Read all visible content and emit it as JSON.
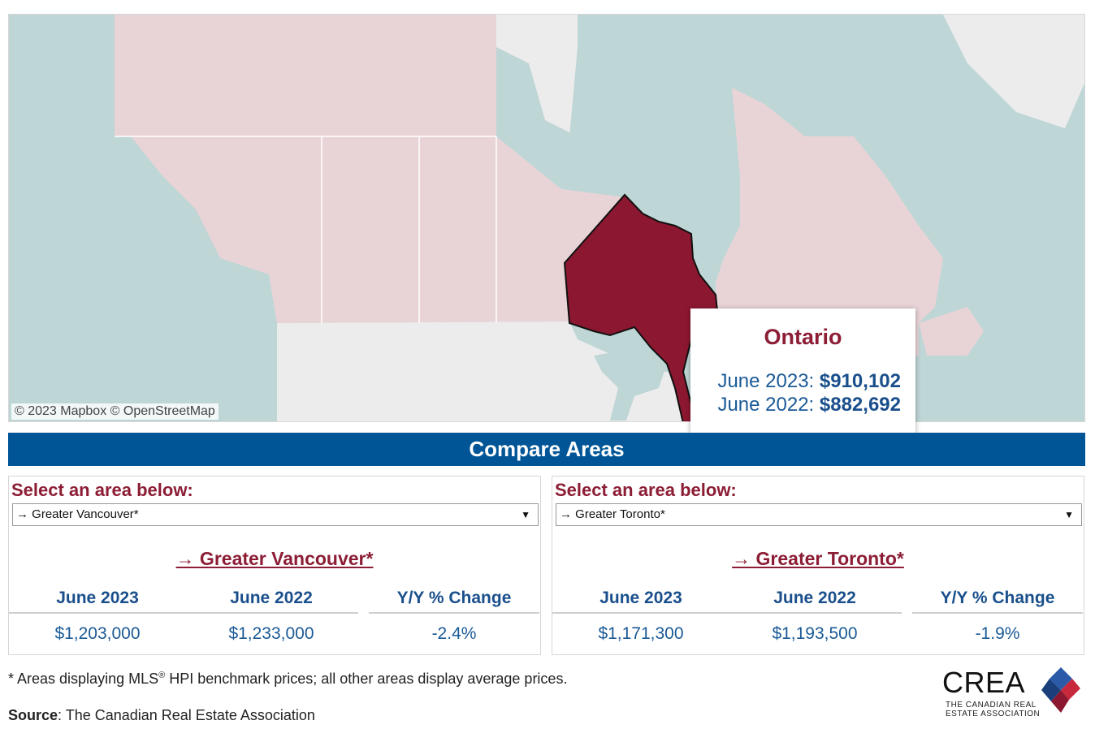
{
  "map": {
    "attribution": "© 2023 Mapbox  © OpenStreetMap",
    "colors": {
      "water": "#bfd6d6",
      "canada": "#e8d4d7",
      "us": "#ececec",
      "selected": "#8c1730",
      "border": "#ffffff"
    },
    "tooltip": {
      "name": "Ontario",
      "rows": [
        {
          "label": "June 2023:",
          "value": "$910,102"
        },
        {
          "label": "June 2022:",
          "value": "$882,692"
        }
      ]
    }
  },
  "compare": {
    "title": "Compare Areas",
    "panels": [
      {
        "prompt": "Select an area below:",
        "selected": "→ Greater Vancouver*",
        "area_title": "→ Greater Vancouver*",
        "headers": [
          "June 2023",
          "June 2022",
          "Y/Y % Change"
        ],
        "values": [
          "$1,203,000",
          "$1,233,000",
          "-2.4%"
        ]
      },
      {
        "prompt": "Select an area below:",
        "selected": "→ Greater Toronto*",
        "area_title": "→ Greater Toronto*",
        "headers": [
          "June 2023",
          "June 2022",
          "Y/Y % Change"
        ],
        "values": [
          "$1,171,300",
          "$1,193,500",
          "-1.9%"
        ]
      }
    ]
  },
  "footer": {
    "footnote_a": "* Areas displaying MLS",
    "footnote_sup": "®",
    "footnote_b": " HPI benchmark prices; all other areas display average prices.",
    "source_label": "Source",
    "source_text": ": The Canadian Real Estate Association",
    "logo_word": "CREA",
    "logo_tag_1": "THE CANADIAN REAL",
    "logo_tag_2": "ESTATE ASSOCIATION"
  },
  "icons": {
    "dropdown": "chevron-down-icon",
    "logo": "crea-diamond-icon"
  }
}
